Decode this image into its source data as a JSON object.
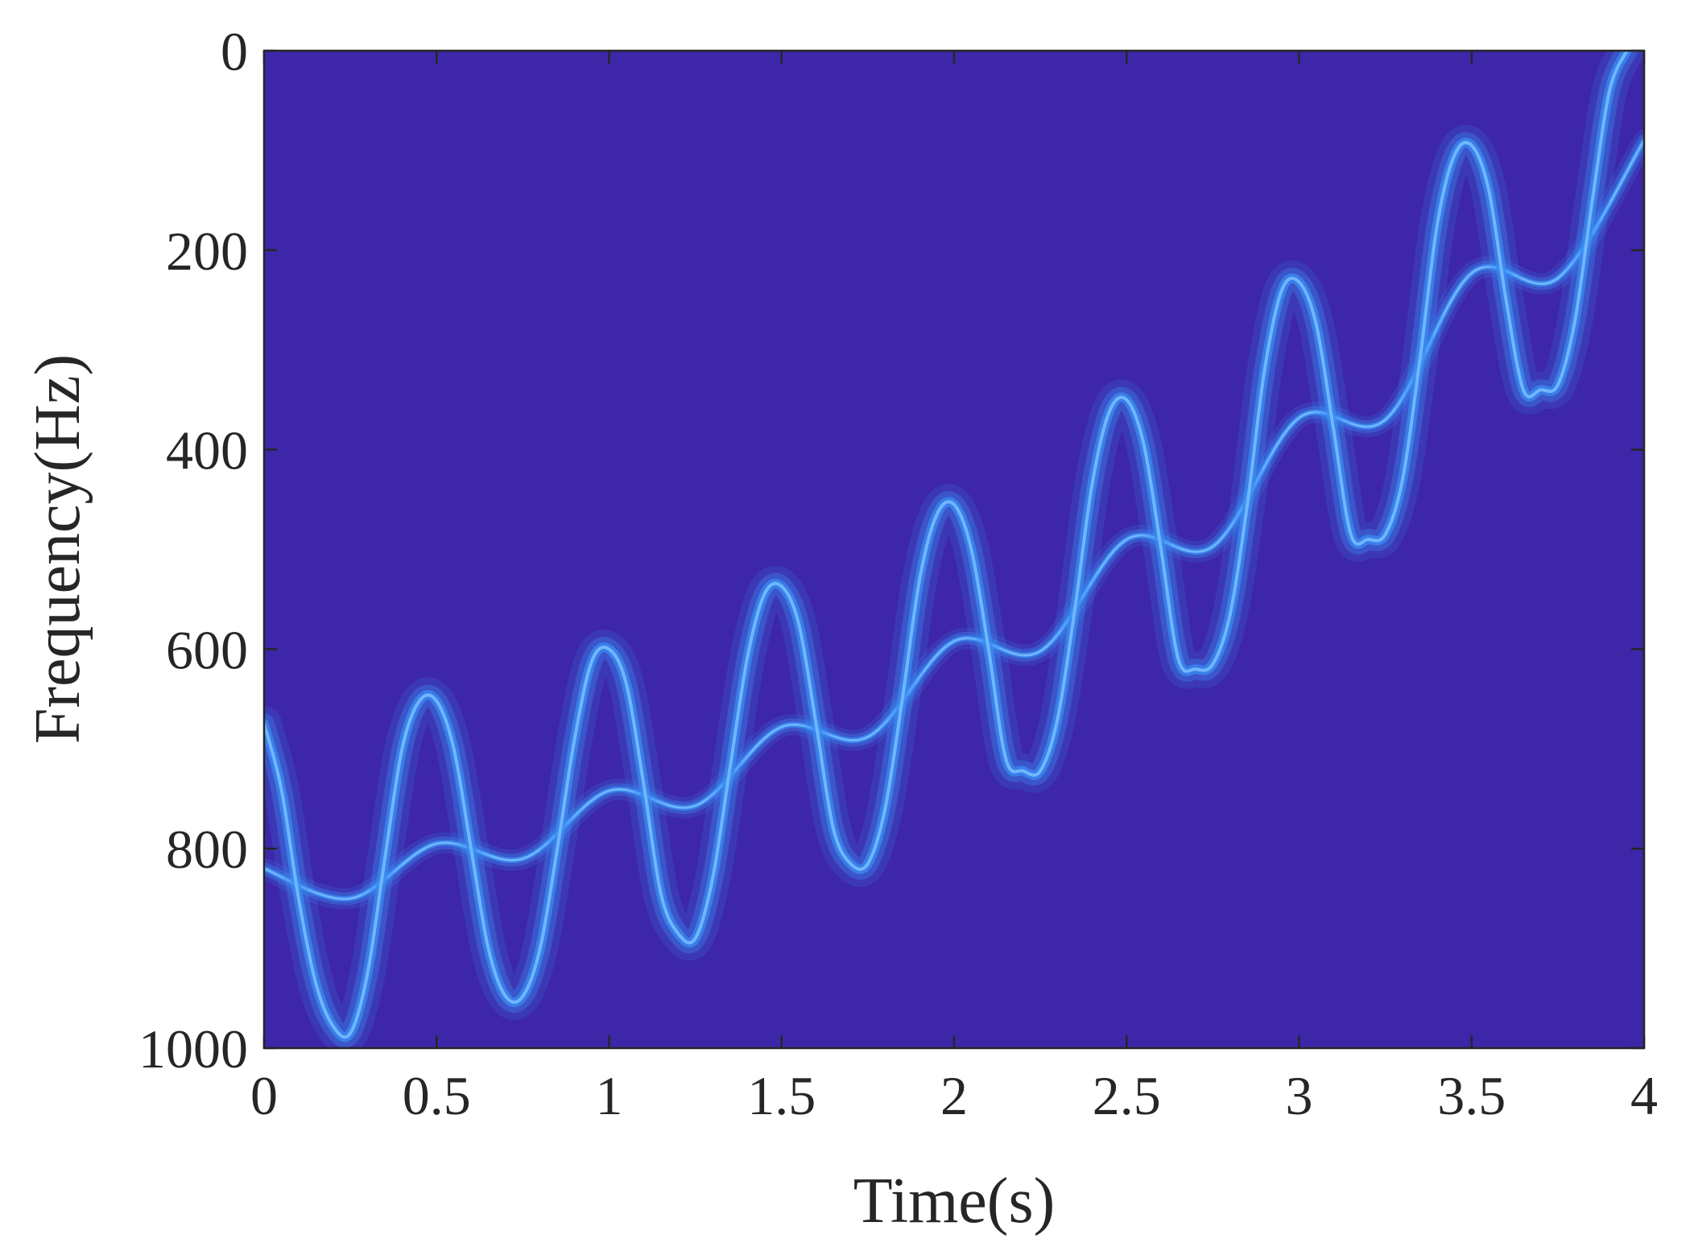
{
  "chart_data": {
    "type": "heatmap",
    "title": "",
    "xlabel": "Time(s)",
    "ylabel": "Frequency(Hz)",
    "xlim": [
      0,
      4
    ],
    "ylim": [
      0,
      1000
    ],
    "y_direction": "reversed",
    "x_ticks": [
      {
        "value": 0,
        "label": "0"
      },
      {
        "value": 0.5,
        "label": "0.5"
      },
      {
        "value": 1,
        "label": "1"
      },
      {
        "value": 1.5,
        "label": "1.5"
      },
      {
        "value": 2,
        "label": "2"
      },
      {
        "value": 2.5,
        "label": "2.5"
      },
      {
        "value": 3,
        "label": "3"
      },
      {
        "value": 3.5,
        "label": "3.5"
      },
      {
        "value": 4,
        "label": "4"
      }
    ],
    "y_ticks": [
      {
        "value": 0,
        "label": "0"
      },
      {
        "value": 200,
        "label": "200"
      },
      {
        "value": 400,
        "label": "400"
      },
      {
        "value": 600,
        "label": "600"
      },
      {
        "value": 800,
        "label": "800"
      },
      {
        "value": 1000,
        "label": "1000"
      }
    ],
    "grid": false,
    "colors": {
      "background": "#3d26a8",
      "ridge": "#3a8cf2",
      "ridge_peak": "#c8e84a",
      "axis": "#262626"
    },
    "series": [
      {
        "x": [
          0,
          0.25,
          0.5,
          0.75,
          1.0,
          1.25,
          1.5,
          1.75,
          2.0,
          2.25,
          2.5,
          2.75,
          3.0,
          3.25,
          3.5,
          3.75,
          4.0
        ],
        "y": [
          820,
          850,
          795,
          810,
          742,
          757,
          678,
          688,
          592,
          602,
          490,
          497,
          368,
          370,
          223,
          228,
          90
        ]
      },
      {
        "x": [
          0,
          0.05,
          0.1,
          0.15,
          0.2,
          0.25,
          0.3,
          0.35,
          0.4,
          0.45,
          0.5,
          0.55,
          0.6,
          0.65,
          0.7,
          0.75,
          0.8,
          0.85,
          0.9,
          0.95,
          1.0,
          1.05,
          1.1,
          1.15,
          1.2,
          1.25,
          1.3,
          1.35,
          1.4,
          1.45,
          1.5,
          1.55,
          1.6,
          1.65,
          1.7,
          1.75,
          1.8,
          1.85,
          1.9,
          1.95,
          2.0,
          2.05,
          2.1,
          2.15,
          2.2,
          2.25,
          2.3,
          2.35,
          2.4,
          2.45,
          2.5,
          2.55,
          2.6,
          2.65,
          2.7,
          2.75,
          2.8,
          2.85,
          2.9,
          2.95,
          3.0,
          3.05,
          3.1,
          3.15,
          3.2,
          3.25,
          3.3,
          3.35,
          3.4,
          3.45,
          3.5,
          3.55,
          3.6,
          3.65,
          3.7,
          3.75,
          3.8,
          3.85,
          3.9,
          3.95
        ],
        "y": [
          675,
          740,
          850,
          935,
          978,
          985,
          925,
          810,
          700,
          652,
          652,
          700,
          800,
          900,
          948,
          948,
          900,
          800,
          690,
          612,
          600,
          635,
          735,
          845,
          885,
          890,
          830,
          720,
          610,
          545,
          537,
          575,
          675,
          780,
          815,
          815,
          760,
          650,
          530,
          465,
          455,
          500,
          600,
          710,
          722,
          722,
          670,
          560,
          435,
          362,
          350,
          395,
          500,
          610,
          620,
          615,
          565,
          455,
          320,
          240,
          232,
          275,
          380,
          485,
          490,
          485,
          430,
          310,
          175,
          105,
          95,
          140,
          250,
          340,
          340,
          335,
          270,
          150,
          40,
          0
        ]
      }
    ]
  }
}
